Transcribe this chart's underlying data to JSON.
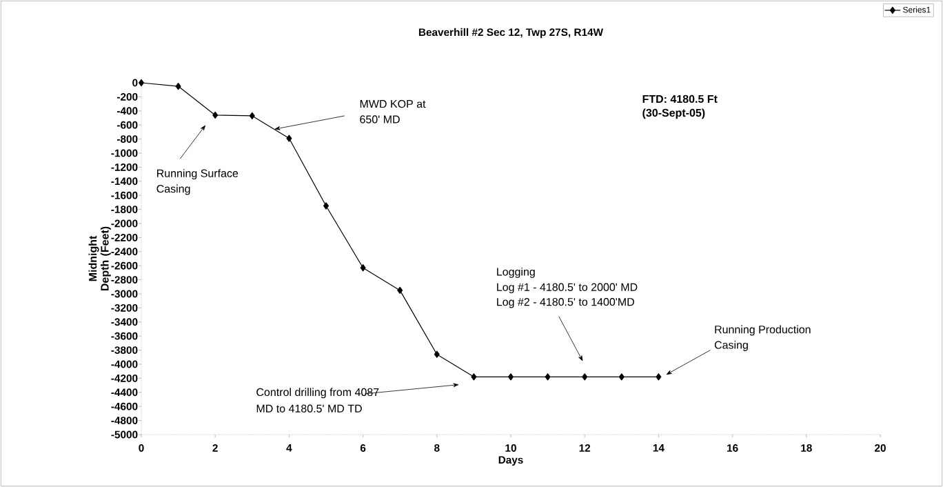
{
  "chart_data": {
    "type": "line",
    "title": "Beaverhill #2 Sec 12, Twp 27S, R14W",
    "xlabel": "Days",
    "ylabel": "Midnight Depth (Feet)",
    "series": [
      {
        "name": "Series1",
        "color": "#000000",
        "x": [
          0,
          1,
          2,
          3,
          4,
          5,
          6,
          7,
          8,
          9,
          10,
          11,
          12,
          13,
          14
        ],
        "values": [
          0,
          -50,
          -460,
          -470,
          -790,
          -1750,
          -2630,
          -2950,
          -3860,
          -4180,
          -4180,
          -4180,
          -4180,
          -4180,
          -4180
        ]
      }
    ],
    "xlim": [
      0,
      20
    ],
    "xticks": [
      0,
      2,
      4,
      6,
      8,
      10,
      12,
      14,
      16,
      18,
      20
    ],
    "ylim": [
      -5000,
      0
    ],
    "yticks": [
      0,
      -200,
      -400,
      -600,
      -800,
      -1000,
      -1200,
      -1400,
      -1600,
      -1800,
      -2000,
      -2200,
      -2400,
      -2600,
      -2800,
      -3000,
      -3200,
      -3400,
      -3600,
      -3800,
      -4000,
      -4200,
      -4400,
      -4600,
      -4800,
      -5000
    ],
    "marker": "diamond",
    "line_style": "solid",
    "grid": false,
    "legend": "top right",
    "annotations": [
      "Running Surface",
      "Casing",
      "MWD KOP at",
      "650' MD",
      "**FTD:  4180.5 Ft**",
      "**(30-Sept-05)**",
      "Logging",
      "Log #1 - 4180.5' to 2000'  MD",
      "Log #2 - 4180.5' to 1400'MD",
      "Running Production",
      "Casing",
      "Control drilling from 4087",
      "MD to 4180.5' MD TD"
    ]
  }
}
